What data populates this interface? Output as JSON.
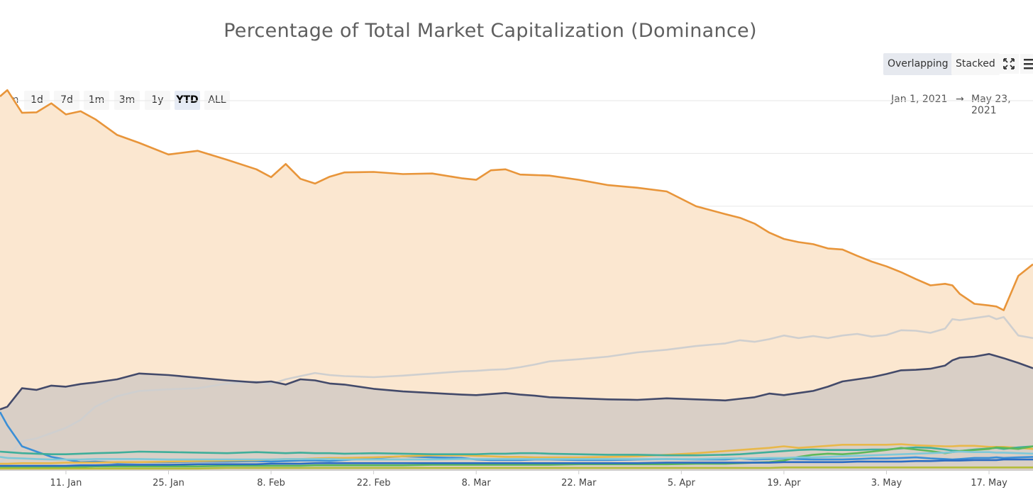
{
  "chart_data": {
    "type": "area",
    "title": "Percentage of Total Market Capitalization (Dominance)",
    "xlabel": "",
    "ylabel": "",
    "stacking_options": [
      "Overlapping",
      "Stacked"
    ],
    "active_stacking": "Overlapping",
    "zoom_label": "Zoom",
    "range_buttons": [
      "1d",
      "7d",
      "1m",
      "3m",
      "1y",
      "YTD",
      "ALL"
    ],
    "active_range": "YTD",
    "date_from": "Jan 1, 2021",
    "date_to": "May 23, 2021",
    "x_tick_labels": [
      "11. Jan",
      "25. Jan",
      "8. Feb",
      "22. Feb",
      "8. Mar",
      "22. Mar",
      "5. Apr",
      "19. Apr",
      "3. May",
      "17. May"
    ],
    "x_tick_days": [
      10,
      24,
      38,
      52,
      66,
      80,
      94,
      108,
      122,
      136
    ],
    "x_range_days": [
      1,
      142
    ],
    "ylim": [
      0,
      70
    ],
    "grid": true,
    "legend": "none",
    "x_points_days": [
      1,
      2,
      4,
      6,
      8,
      10,
      12,
      14,
      17,
      20,
      24,
      28,
      32,
      36,
      38,
      40,
      42,
      44,
      46,
      48,
      52,
      56,
      60,
      64,
      66,
      68,
      70,
      72,
      74,
      76,
      80,
      84,
      88,
      92,
      96,
      100,
      102,
      104,
      106,
      108,
      110,
      112,
      114,
      116,
      118,
      120,
      122,
      124,
      126,
      128,
      130,
      131,
      132,
      134,
      136,
      137,
      138,
      140,
      142
    ],
    "series": [
      {
        "color": "#e8953a",
        "fill": "#fbe7d0",
        "values": [
          70.8,
          72.0,
          67.7,
          67.8,
          69.5,
          67.4,
          68.0,
          66.5,
          63.5,
          62.0,
          59.8,
          60.5,
          58.8,
          57.0,
          55.5,
          58.0,
          55.2,
          54.3,
          55.6,
          56.4,
          56.5,
          56.1,
          56.2,
          55.3,
          55.0,
          56.8,
          57.0,
          56.0,
          55.9,
          55.8,
          55.0,
          54.0,
          53.5,
          52.8,
          50.0,
          48.5,
          47.8,
          46.7,
          45.0,
          43.8,
          43.2,
          42.8,
          42.0,
          41.8,
          40.6,
          39.5,
          38.6,
          37.5,
          36.2,
          35.0,
          35.3,
          35.0,
          33.4,
          31.5,
          31.2,
          31.0,
          30.3,
          36.8,
          39.0
        ]
      },
      {
        "color": "#cfcfcf",
        "fill": "none",
        "values": [
          1.5,
          2.5,
          5.5,
          6.0,
          7.0,
          8.0,
          9.5,
          12.0,
          14.0,
          15.0,
          15.3,
          15.5,
          16.4,
          16.8,
          16.3,
          17.2,
          17.8,
          18.4,
          18.0,
          17.8,
          17.6,
          17.9,
          18.3,
          18.7,
          18.8,
          19.0,
          19.1,
          19.5,
          20.0,
          20.6,
          21.0,
          21.5,
          22.3,
          22.8,
          23.5,
          24.0,
          24.6,
          24.3,
          24.8,
          25.5,
          25.0,
          25.4,
          25.0,
          25.5,
          25.8,
          25.3,
          25.6,
          26.5,
          26.4,
          26.0,
          26.8,
          28.6,
          28.4,
          28.8,
          29.2,
          28.6,
          29.0,
          25.5,
          25.0
        ]
      },
      {
        "color": "#434a6a",
        "fill": "#d9cfc6",
        "values": [
          11.5,
          12.0,
          15.5,
          15.2,
          16.0,
          15.8,
          16.3,
          16.6,
          17.2,
          18.3,
          18.0,
          17.5,
          17.0,
          16.6,
          16.8,
          16.2,
          17.2,
          17.0,
          16.4,
          16.2,
          15.4,
          14.9,
          14.6,
          14.3,
          14.2,
          14.4,
          14.6,
          14.3,
          14.1,
          13.8,
          13.6,
          13.4,
          13.3,
          13.6,
          13.4,
          13.2,
          13.5,
          13.8,
          14.5,
          14.2,
          14.6,
          15.0,
          15.8,
          16.8,
          17.2,
          17.6,
          18.2,
          18.9,
          19.0,
          19.2,
          19.8,
          20.8,
          21.3,
          21.5,
          22.0,
          21.6,
          21.2,
          20.3,
          19.3
        ]
      },
      {
        "color": "#3b8fd6",
        "fill": "none",
        "values": [
          11.0,
          8.5,
          4.5,
          3.5,
          2.5,
          2.0,
          1.5,
          1.6,
          1.4,
          1.5,
          1.5,
          1.6,
          1.6,
          1.7,
          1.6,
          1.7,
          1.8,
          1.8,
          1.7,
          1.9,
          2.3,
          2.6,
          2.4,
          2.3,
          2.0,
          1.9,
          1.9,
          1.9,
          2.0,
          2.0,
          1.9,
          1.9,
          2.0,
          2.1,
          2.0,
          2.0,
          2.2,
          2.0,
          2.1,
          2.2,
          2.1,
          2.0,
          2.0,
          2.0,
          2.1,
          2.2,
          2.2,
          2.3,
          2.4,
          2.2,
          2.1,
          2.0,
          2.1,
          2.3,
          2.3,
          2.4,
          2.3,
          2.4,
          2.5
        ]
      },
      {
        "color": "#e8b84a",
        "fill": "none",
        "values": [
          1.2,
          1.2,
          1.3,
          1.3,
          1.3,
          1.4,
          1.4,
          1.4,
          1.5,
          1.5,
          1.6,
          1.7,
          1.8,
          1.9,
          2.0,
          2.1,
          2.1,
          2.2,
          2.3,
          2.3,
          2.4,
          2.6,
          2.8,
          2.8,
          2.7,
          2.6,
          2.5,
          2.5,
          2.4,
          2.4,
          2.4,
          2.5,
          2.6,
          2.9,
          3.2,
          3.6,
          3.8,
          4.0,
          4.2,
          4.5,
          4.2,
          4.4,
          4.6,
          4.8,
          4.8,
          4.8,
          4.8,
          4.9,
          4.7,
          4.6,
          4.5,
          4.5,
          4.6,
          4.6,
          4.4,
          4.4,
          4.4,
          4.2,
          4.0
        ]
      },
      {
        "color": "#3fae9a",
        "fill": "none",
        "values": [
          3.5,
          3.4,
          3.2,
          3.1,
          3.0,
          3.0,
          3.1,
          3.2,
          3.3,
          3.5,
          3.4,
          3.3,
          3.2,
          3.4,
          3.3,
          3.2,
          3.3,
          3.2,
          3.2,
          3.1,
          3.2,
          3.1,
          3.0,
          3.0,
          3.0,
          3.1,
          3.1,
          3.2,
          3.2,
          3.1,
          3.0,
          2.9,
          2.9,
          2.8,
          2.8,
          2.9,
          3.0,
          3.2,
          3.4,
          3.6,
          3.8,
          3.9,
          3.8,
          3.8,
          3.8,
          3.9,
          3.9,
          4.1,
          4.3,
          4.2,
          3.9,
          3.7,
          3.6,
          3.9,
          4.1,
          4.2,
          4.0,
          4.3,
          4.5
        ]
      },
      {
        "color": "#5db85a",
        "fill": "none",
        "values": [
          0.6,
          0.6,
          0.6,
          0.6,
          0.6,
          0.6,
          0.6,
          0.7,
          0.7,
          0.7,
          0.7,
          0.7,
          0.8,
          0.8,
          0.8,
          0.8,
          0.8,
          0.9,
          0.9,
          0.9,
          0.9,
          0.9,
          1.0,
          1.0,
          1.0,
          1.0,
          1.0,
          1.0,
          1.0,
          1.0,
          1.1,
          1.1,
          1.1,
          1.1,
          1.2,
          1.2,
          1.3,
          1.4,
          1.5,
          1.8,
          2.5,
          2.9,
          3.1,
          3.0,
          3.2,
          3.5,
          3.8,
          4.2,
          3.9,
          3.6,
          3.2,
          3.4,
          3.6,
          3.8,
          4.0,
          4.3,
          4.2,
          4.0,
          4.5
        ]
      },
      {
        "color": "#7fc8d8",
        "fill": "none",
        "values": [
          2.5,
          2.3,
          2.2,
          2.1,
          2.0,
          2.0,
          2.0,
          2.1,
          2.1,
          2.1,
          2.0,
          2.0,
          2.0,
          2.0,
          2.0,
          2.1,
          2.1,
          2.1,
          2.1,
          2.0,
          2.0,
          2.0,
          2.0,
          2.1,
          2.1,
          2.1,
          2.1,
          2.1,
          2.1,
          2.1,
          2.1,
          2.1,
          2.1,
          2.1,
          2.1,
          2.2,
          2.2,
          2.2,
          2.3,
          2.3,
          2.4,
          2.4,
          2.5,
          2.6,
          2.7,
          2.8,
          2.9,
          3.0,
          3.1,
          3.2,
          3.3,
          3.4,
          3.5,
          3.4,
          3.4,
          3.3,
          3.3,
          3.2,
          3.1
        ]
      },
      {
        "color": "#2b6cc4",
        "fill": "none",
        "values": [
          0.8,
          0.8,
          0.8,
          0.8,
          0.8,
          0.8,
          0.9,
          0.9,
          1.0,
          1.0,
          1.0,
          1.1,
          1.1,
          1.1,
          1.2,
          1.2,
          1.2,
          1.3,
          1.3,
          1.3,
          1.3,
          1.3,
          1.3,
          1.3,
          1.3,
          1.3,
          1.3,
          1.3,
          1.3,
          1.3,
          1.3,
          1.3,
          1.3,
          1.4,
          1.4,
          1.4,
          1.4,
          1.4,
          1.4,
          1.5,
          1.5,
          1.5,
          1.5,
          1.5,
          1.6,
          1.6,
          1.6,
          1.6,
          1.7,
          1.7,
          1.8,
          1.8,
          1.8,
          1.9,
          1.9,
          1.9,
          2.0,
          2.0,
          2.0
        ]
      },
      {
        "color": "#b5bd3a",
        "fill": "none",
        "values": [
          0.3,
          0.3,
          0.3,
          0.3,
          0.3,
          0.3,
          0.3,
          0.3,
          0.3,
          0.3,
          0.3,
          0.3,
          0.4,
          0.4,
          0.4,
          0.4,
          0.4,
          0.4,
          0.4,
          0.4,
          0.4,
          0.4,
          0.4,
          0.4,
          0.4,
          0.4,
          0.4,
          0.4,
          0.4,
          0.4,
          0.4,
          0.4,
          0.4,
          0.4,
          0.4,
          0.4,
          0.4,
          0.4,
          0.4,
          0.5,
          0.5,
          0.5,
          0.5,
          0.5,
          0.5,
          0.5,
          0.5,
          0.5,
          0.5,
          0.5,
          0.5,
          0.5,
          0.5,
          0.5,
          0.5,
          0.5,
          0.5,
          0.5,
          0.5
        ]
      }
    ]
  }
}
